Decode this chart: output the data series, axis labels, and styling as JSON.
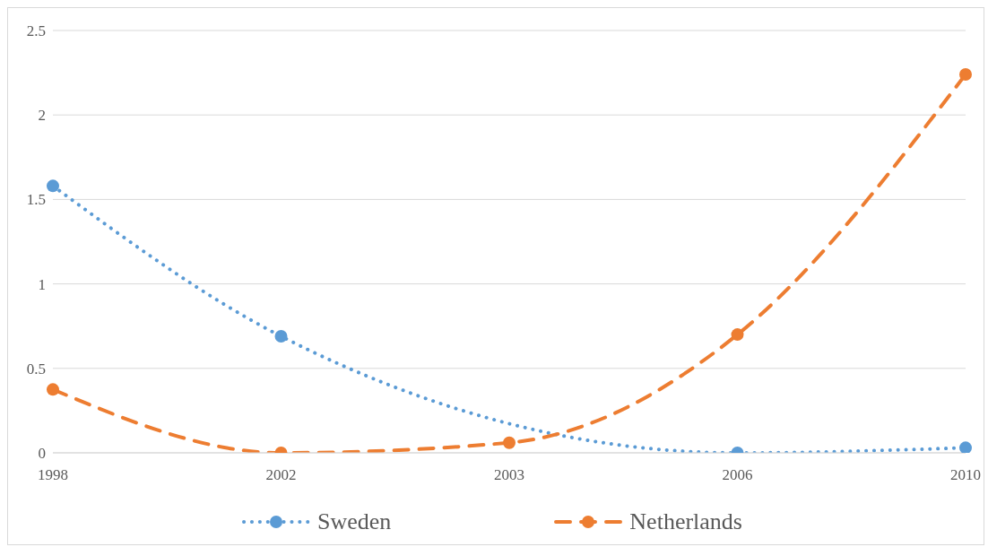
{
  "chart_data": {
    "type": "line",
    "categories": [
      "1998",
      "2002",
      "2003",
      "2006",
      "2010"
    ],
    "series": [
      {
        "name": "Sweden",
        "color": "#5b9bd5",
        "values": [
          1.58,
          0.69,
          null,
          0,
          0.03
        ],
        "line_style": "dotted"
      },
      {
        "name": "Netherlands",
        "color": "#ed7d31",
        "values": [
          0.375,
          0,
          0.06,
          0.7,
          2.24
        ],
        "line_style": "dashed"
      }
    ],
    "ylim": [
      0,
      2.5
    ],
    "yticks": [
      0,
      0.5,
      1,
      1.5,
      2,
      2.5
    ],
    "grid": "y",
    "legend": "bottom",
    "marker": "circle"
  }
}
